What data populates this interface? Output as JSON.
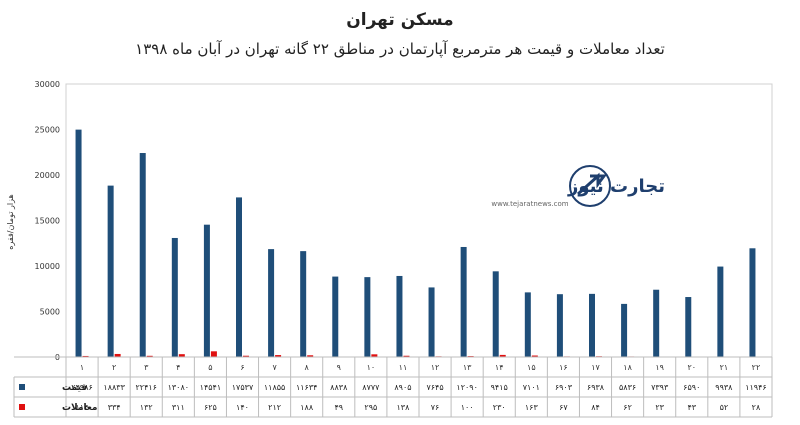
{
  "colors": {
    "price": "#1f4e79",
    "deals": "#e01010",
    "logo_dark": "#1f3f6e",
    "logo_accent": "#e03030"
  },
  "logo": {
    "text": "تجارت نیوز",
    "url": "www.tejaratnews.com",
    "icon": "arrow-globe-icon"
  },
  "chart_data": {
    "type": "bar",
    "title": "مسکن تهران",
    "subtitle": "تعداد معاملات و قیمت هر مترمربع آپارتمان در مناطق ۲۲ گانه تهران در آبان ماه ۱۳۹۸",
    "ylabel": "هزار تومان/فقره",
    "xlabel": "",
    "ylim": [
      0,
      30000
    ],
    "yticks": [
      "0",
      "5000",
      "10000",
      "15000",
      "20000",
      "25000",
      "30000"
    ],
    "grid": false,
    "legend": "table-bottom",
    "categories": [
      "1",
      "2",
      "3",
      "4",
      "5",
      "6",
      "7",
      "8",
      "9",
      "10",
      "11",
      "12",
      "13",
      "14",
      "15",
      "16",
      "17",
      "18",
      "19",
      "20",
      "21",
      "22"
    ],
    "category_labels": [
      "۱",
      "۲",
      "۳",
      "۴",
      "۵",
      "۶",
      "۷",
      "۸",
      "۹",
      "۱۰",
      "۱۱",
      "۱۲",
      "۱۳",
      "۱۴",
      "۱۵",
      "۱۶",
      "۱۷",
      "۱۸",
      "۱۹",
      "۲۰",
      "۲۱",
      "۲۲"
    ],
    "series": [
      {
        "name": "قیمت",
        "values": [
          24986,
          18833,
          22416,
          13080,
          14541,
          17537,
          11855,
          11634,
          8838,
          8777,
          8905,
          7645,
          12090,
          9415,
          7101,
          6903,
          6938,
          5836,
          7393,
          6590,
          9938,
          11946
        ],
        "labels": [
          "۲۴۹۸۶",
          "۱۸۸۳۳",
          "۲۲۴۱۶",
          "۱۳۰۸۰",
          "۱۴۵۴۱",
          "۱۷۵۳۷",
          "۱۱۸۵۵",
          "۱۱۶۳۴",
          "۸۸۳۸",
          "۸۷۷۷",
          "۸۹۰۵",
          "۷۶۴۵",
          "۱۲۰۹۰",
          "۹۴۱۵",
          "۷۱۰۱",
          "۶۹۰۳",
          "۶۹۳۸",
          "۵۸۳۶",
          "۷۳۹۳",
          "۶۵۹۰",
          "۹۹۳۸",
          "۱۱۹۴۶"
        ]
      },
      {
        "name": "معاملات",
        "values": [
          114,
          334,
          132,
          311,
          625,
          140,
          212,
          188,
          49,
          295,
          138,
          76,
          100,
          230,
          163,
          67,
          84,
          62,
          23,
          43,
          52,
          28
        ],
        "labels": [
          "۱۱۴",
          "۳۳۴",
          "۱۳۲",
          "۳۱۱",
          "۶۲۵",
          "۱۴۰",
          "۲۱۲",
          "۱۸۸",
          "۴۹",
          "۲۹۵",
          "۱۳۸",
          "۷۶",
          "۱۰۰",
          "۲۳۰",
          "۱۶۳",
          "۶۷",
          "۸۴",
          "۶۲",
          "۲۳",
          "۴۳",
          "۵۲",
          "۲۸"
        ]
      }
    ]
  }
}
